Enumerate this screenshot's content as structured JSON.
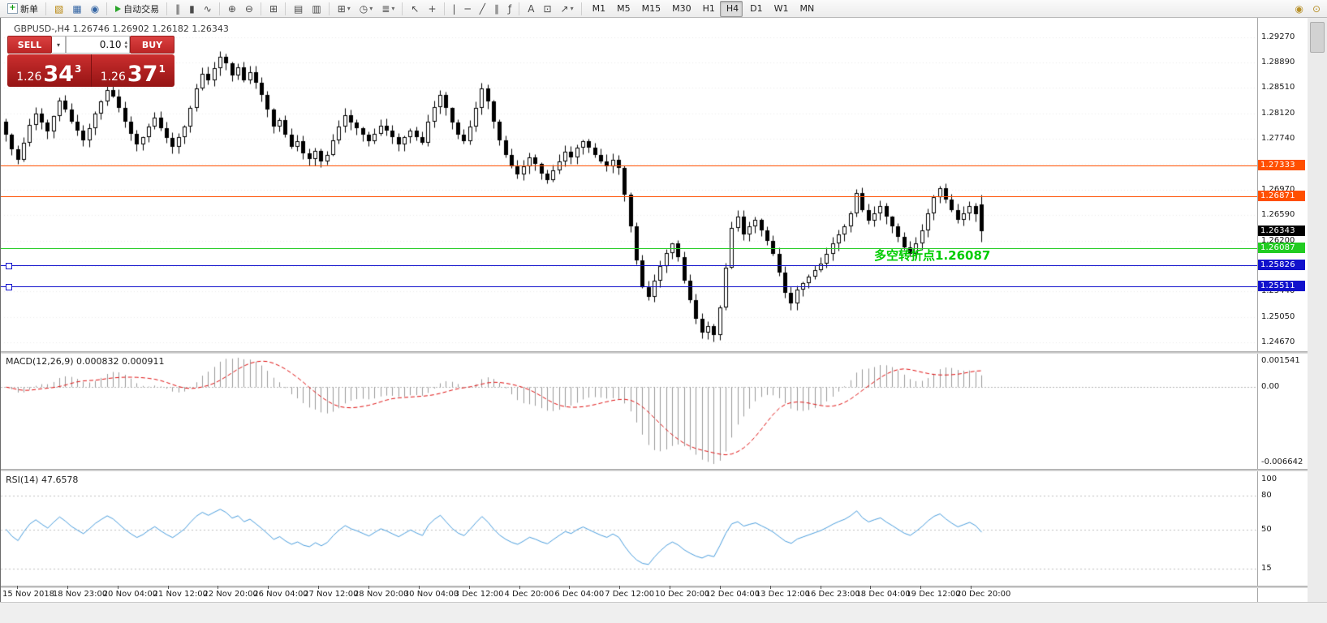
{
  "toolbar": {
    "items": [
      {
        "name": "new-order-button",
        "label": "新单",
        "iconClass": "ic-order",
        "iconText": "+",
        "iconName": "new-order-icon"
      },
      {
        "sep": true
      },
      {
        "name": "charts-button",
        "glyph": "▧",
        "color": "#b8860b",
        "iconName": "charts-icon"
      },
      {
        "name": "market-watch-button",
        "glyph": "▦",
        "color": "#3465a4",
        "iconName": "market-watch-icon"
      },
      {
        "name": "help-button",
        "glyph": "◉",
        "color": "#3465a4",
        "iconName": "help-icon"
      },
      {
        "sep": true
      },
      {
        "name": "autotrading-button",
        "label": "自动交易",
        "iconClass": "ic-play",
        "iconName": "autotrading-play-icon"
      },
      {
        "sep": true
      },
      {
        "name": "bar-chart-button",
        "glyph": "‖",
        "iconName": "ohlc-bars-icon"
      },
      {
        "name": "candlestick-button",
        "glyph": "▮",
        "iconName": "candlestick-icon"
      },
      {
        "name": "line-chart-button",
        "glyph": "∿",
        "iconName": "line-chart-icon"
      },
      {
        "sep": true
      },
      {
        "name": "zoom-in-button",
        "glyph": "⊕",
        "iconName": "zoom-in-icon"
      },
      {
        "name": "zoom-out-button",
        "glyph": "⊖",
        "iconName": "zoom-out-icon"
      },
      {
        "sep": true
      },
      {
        "name": "tile-windows-button",
        "glyph": "⊞",
        "iconName": "tile-windows-icon"
      },
      {
        "sep": true
      },
      {
        "name": "arrange-horizontal-button",
        "glyph": "▤",
        "iconName": "arrange-horizontal-icon"
      },
      {
        "name": "arrange-vertical-button",
        "glyph": "▥",
        "iconName": "arrange-vertical-icon"
      },
      {
        "sep": true
      },
      {
        "name": "new-chart-button",
        "glyph": "⊞",
        "dropdown": true,
        "iconName": "new-chart-icon"
      },
      {
        "name": "profiles-button",
        "glyph": "◷",
        "dropdown": true,
        "iconName": "clock-icon"
      },
      {
        "name": "indicators-button",
        "glyph": "≣",
        "dropdown": true,
        "iconName": "indicators-icon"
      },
      {
        "sep": true
      },
      {
        "name": "cursor-button",
        "glyph": "↖",
        "iconName": "cursor-icon"
      },
      {
        "name": "crosshair-button",
        "glyph": "+",
        "iconName": "crosshair-icon"
      },
      {
        "sep": true
      },
      {
        "name": "vertical-line-button",
        "glyph": "|",
        "iconName": "vertical-line-icon"
      },
      {
        "name": "horizontal-line-button",
        "glyph": "─",
        "iconName": "horizontal-line-icon"
      },
      {
        "name": "trendline-button",
        "glyph": "╱",
        "iconName": "trendline-icon"
      },
      {
        "name": "channel-button",
        "glyph": "∥",
        "iconName": "channel-icon"
      },
      {
        "name": "fibonacci-button",
        "glyph": "ƒ",
        "iconName": "fibonacci-icon"
      },
      {
        "sep": true
      },
      {
        "name": "text-button",
        "glyph": "A",
        "iconName": "text-icon"
      },
      {
        "name": "text-label-button",
        "glyph": "⊡",
        "iconName": "label-icon"
      },
      {
        "name": "arrow-tools-button",
        "glyph": "↗",
        "dropdown": true,
        "iconName": "arrow-tools-icon"
      },
      {
        "sep": true
      },
      {
        "name": "tf-m1-button",
        "label": "M1"
      },
      {
        "name": "tf-m5-button",
        "label": "M5"
      },
      {
        "name": "tf-m15-button",
        "label": "M15"
      },
      {
        "name": "tf-m30-button",
        "label": "M30"
      },
      {
        "name": "tf-h1-button",
        "label": "H1"
      },
      {
        "name": "tf-h4-button",
        "label": "H4",
        "active": true
      },
      {
        "name": "tf-d1-button",
        "label": "D1"
      },
      {
        "name": "tf-w1-button",
        "label": "W1"
      },
      {
        "name": "tf-mn-button",
        "label": "MN"
      }
    ],
    "right_icons": [
      {
        "name": "toolbar-extra-button-1",
        "glyph": "◉",
        "iconName": "circle-icon"
      },
      {
        "name": "toolbar-extra-button-2",
        "glyph": "⊙",
        "iconName": "circle-outline-icon"
      }
    ]
  },
  "chart": {
    "symbol_title": "GBPUSD-,H4 1.26746 1.26902 1.26182 1.26343",
    "annotation": {
      "text": "多空转折点1.26087",
      "color": "#00cc00"
    },
    "current_price": {
      "label": "1.26343",
      "value": 1.26343,
      "bg": "#000000"
    },
    "levels": [
      {
        "name": "resistance-1",
        "label": "1.27333",
        "value": 1.27333,
        "color": "#ff4f00"
      },
      {
        "name": "resistance-2",
        "label": "1.26871",
        "value": 1.26871,
        "color": "#ff4f00"
      },
      {
        "name": "pivot",
        "label": "1.26087",
        "value": 1.26087,
        "color": "#22cc22"
      },
      {
        "name": "support-1",
        "label": "1.25826",
        "value": 1.25826,
        "color": "#1111cc",
        "handle": true
      },
      {
        "name": "support-2",
        "label": "1.25511",
        "value": 1.25511,
        "color": "#1111cc",
        "handle": true
      }
    ],
    "price_axis": [
      "1.29270",
      "1.28890",
      "1.28510",
      "1.28120",
      "1.27740",
      "1.27360",
      "1.26970",
      "1.26590",
      "1.26200",
      "1.25820",
      "1.25440",
      "1.25050",
      "1.24670"
    ],
    "time_axis": [
      "15 Nov 2018",
      "18 Nov 23:00",
      "20 Nov 04:00",
      "21 Nov 12:00",
      "22 Nov 20:00",
      "26 Nov 04:00",
      "27 Nov 12:00",
      "28 Nov 20:00",
      "30 Nov 04:00",
      "3 Dec 12:00",
      "4 Dec 20:00",
      "6 Dec 04:00",
      "7 Dec 12:00",
      "10 Dec 20:00",
      "12 Dec 04:00",
      "13 Dec 12:00",
      "16 Dec 23:00",
      "18 Dec 04:00",
      "19 Dec 12:00",
      "20 Dec 20:00"
    ]
  },
  "trade_panel": {
    "sell_label": "SELL",
    "buy_label": "BUY",
    "lot": "0.10",
    "sell_price_small": "1.26",
    "sell_price_big": "34",
    "sell_price_sup": "3",
    "buy_price_small": "1.26",
    "buy_price_big": "37",
    "buy_price_sup": "1"
  },
  "macd": {
    "label": "MACD(12,26,9) 0.000832 0.000911",
    "axis_max": "0.001541",
    "axis_zero": "0.00",
    "axis_min": "-0.006642"
  },
  "rsi": {
    "label": "RSI(14) 47.6578",
    "axis_top": "100",
    "levels": [
      80,
      50,
      15
    ]
  },
  "chart_data": {
    "type": "candlestick",
    "symbol": "GBPUSD",
    "timeframe": "H4",
    "price_range": [
      1.24547,
      1.29515
    ],
    "ohlc_current": {
      "open": 1.26746,
      "high": 1.26902,
      "low": 1.26182,
      "close": 1.26343
    },
    "closes": [
      1.278,
      1.2758,
      1.2742,
      1.2768,
      1.2795,
      1.2812,
      1.2798,
      1.2785,
      1.2808,
      1.2832,
      1.2818,
      1.28,
      1.2786,
      1.2772,
      1.279,
      1.2812,
      1.283,
      1.2848,
      1.2838,
      1.282,
      1.28,
      1.2782,
      1.2766,
      1.2776,
      1.2792,
      1.2806,
      1.279,
      1.2775,
      1.2762,
      1.2776,
      1.2792,
      1.282,
      1.285,
      1.2872,
      1.2862,
      1.288,
      1.2898,
      1.2888,
      1.287,
      1.2882,
      1.2862,
      1.2874,
      1.2858,
      1.284,
      1.2818,
      1.2792,
      1.2802,
      1.278,
      1.2762,
      1.277,
      1.2752,
      1.2744,
      1.2756,
      1.274,
      1.275,
      1.2772,
      1.2792,
      1.281,
      1.2798,
      1.279,
      1.278,
      1.277,
      1.2782,
      1.2794,
      1.2786,
      1.2776,
      1.2766,
      1.2776,
      1.2786,
      1.2776,
      1.2768,
      1.28,
      1.2822,
      1.284,
      1.282,
      1.2798,
      1.278,
      1.277,
      1.2792,
      1.282,
      1.285,
      1.283,
      1.28,
      1.2772,
      1.275,
      1.2732,
      1.272,
      1.2732,
      1.2746,
      1.2736,
      1.2722,
      1.2712,
      1.2726,
      1.274,
      1.2754,
      1.2746,
      1.276,
      1.277,
      1.276,
      1.275,
      1.274,
      1.2732,
      1.2742,
      1.273,
      1.269,
      1.2642,
      1.259,
      1.255,
      1.2536,
      1.256,
      1.2582,
      1.2602,
      1.2616,
      1.2596,
      1.256,
      1.253,
      1.2502,
      1.2482,
      1.2492,
      1.2478,
      1.252,
      1.258,
      1.264,
      1.2656,
      1.263,
      1.2642,
      1.2652,
      1.2636,
      1.262,
      1.26,
      1.2572,
      1.2542,
      1.2526,
      1.2546,
      1.2556,
      1.2566,
      1.2576,
      1.2586,
      1.26,
      1.2616,
      1.263,
      1.2642,
      1.2662,
      1.2692,
      1.2666,
      1.265,
      1.2662,
      1.2672,
      1.2656,
      1.2642,
      1.2626,
      1.261,
      1.26,
      1.2616,
      1.2636,
      1.2662,
      1.2686,
      1.27,
      1.2682,
      1.2666,
      1.2652,
      1.2662,
      1.2672,
      1.266,
      1.26343
    ],
    "indicators": [
      {
        "type": "MACD",
        "params": [
          12,
          26,
          9
        ],
        "current_values": [
          0.000832,
          0.000911
        ]
      },
      {
        "type": "RSI",
        "params": [
          14
        ],
        "current_value": 47.6578
      }
    ]
  }
}
